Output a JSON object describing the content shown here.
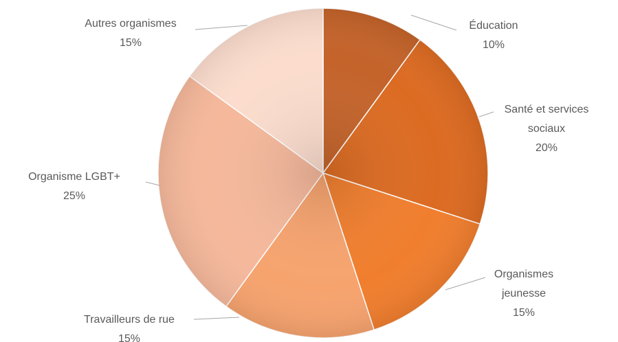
{
  "chart_data": {
    "type": "pie",
    "categories": [
      "Éducation",
      "Santé et services sociaux",
      "Organismes jeunesse",
      "Travailleurs de rue",
      "Organisme LGBT+",
      "Autres organismes"
    ],
    "values": [
      10,
      20,
      15,
      15,
      25,
      15
    ],
    "value_labels": [
      "10%",
      "20%",
      "15%",
      "15%",
      "25%",
      "15%"
    ],
    "colors": [
      "#c4632a",
      "#dc6b22",
      "#f07e2e",
      "#f6a36e",
      "#f5b89b",
      "#fbdccd"
    ]
  }
}
